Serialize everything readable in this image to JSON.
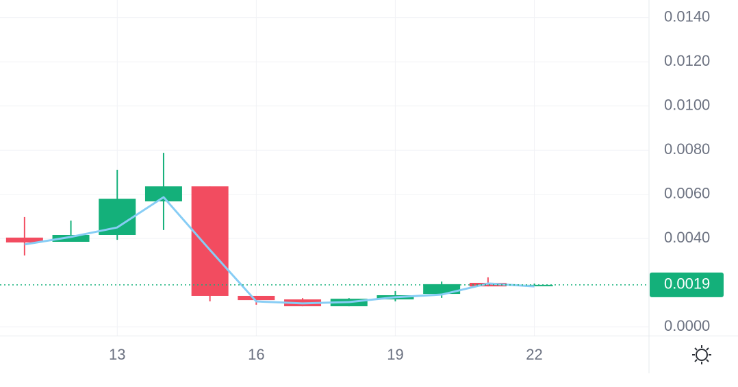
{
  "chart_data": {
    "type": "candlestick",
    "categories": [
      null,
      null,
      "13",
      null,
      null,
      "16",
      null,
      null,
      "19",
      null,
      null,
      "22"
    ],
    "open": [
      0.00404,
      0.00385,
      0.00416,
      0.00568,
      0.00636,
      0.0014,
      0.00124,
      0.00093,
      0.00124,
      0.00149,
      0.00199,
      0.00187
    ],
    "high": [
      0.00497,
      0.00481,
      0.00711,
      0.00788,
      0.00636,
      0.0014,
      0.0013,
      0.0013,
      0.00162,
      0.00205,
      0.00224,
      0.00196
    ],
    "low": [
      0.00323,
      0.00385,
      0.00394,
      0.00438,
      0.00115,
      0.001,
      0.00093,
      0.00093,
      0.00115,
      0.00131,
      0.00183,
      0.00187
    ],
    "close": [
      0.00382,
      0.00416,
      0.0058,
      0.00636,
      0.0014,
      0.00121,
      0.00093,
      0.00127,
      0.00143,
      0.00193,
      0.00183,
      0.0019
    ],
    "up_color": "#14b07a",
    "down_color": "#f24c60",
    "line": {
      "color": "#87cdf5",
      "values": [
        0.00373,
        0.00407,
        0.0045,
        0.00587,
        0.00348,
        0.00115,
        0.00106,
        0.00112,
        0.00134,
        0.00146,
        0.00196,
        0.00183
      ]
    },
    "current_price": 0.0019,
    "ylim": [
      -0.0004,
      0.0148
    ],
    "yticks": [
      {
        "value": 0,
        "label": "0.0000"
      },
      {
        "value": 0.004,
        "label": "0.0040"
      },
      {
        "value": 0.006,
        "label": "0.0060"
      },
      {
        "value": 0.008,
        "label": "0.0080"
      },
      {
        "value": 0.01,
        "label": "0.0100"
      },
      {
        "value": 0.012,
        "label": "0.0120"
      },
      {
        "value": 0.014,
        "label": "0.0140"
      }
    ],
    "grid": true
  }
}
